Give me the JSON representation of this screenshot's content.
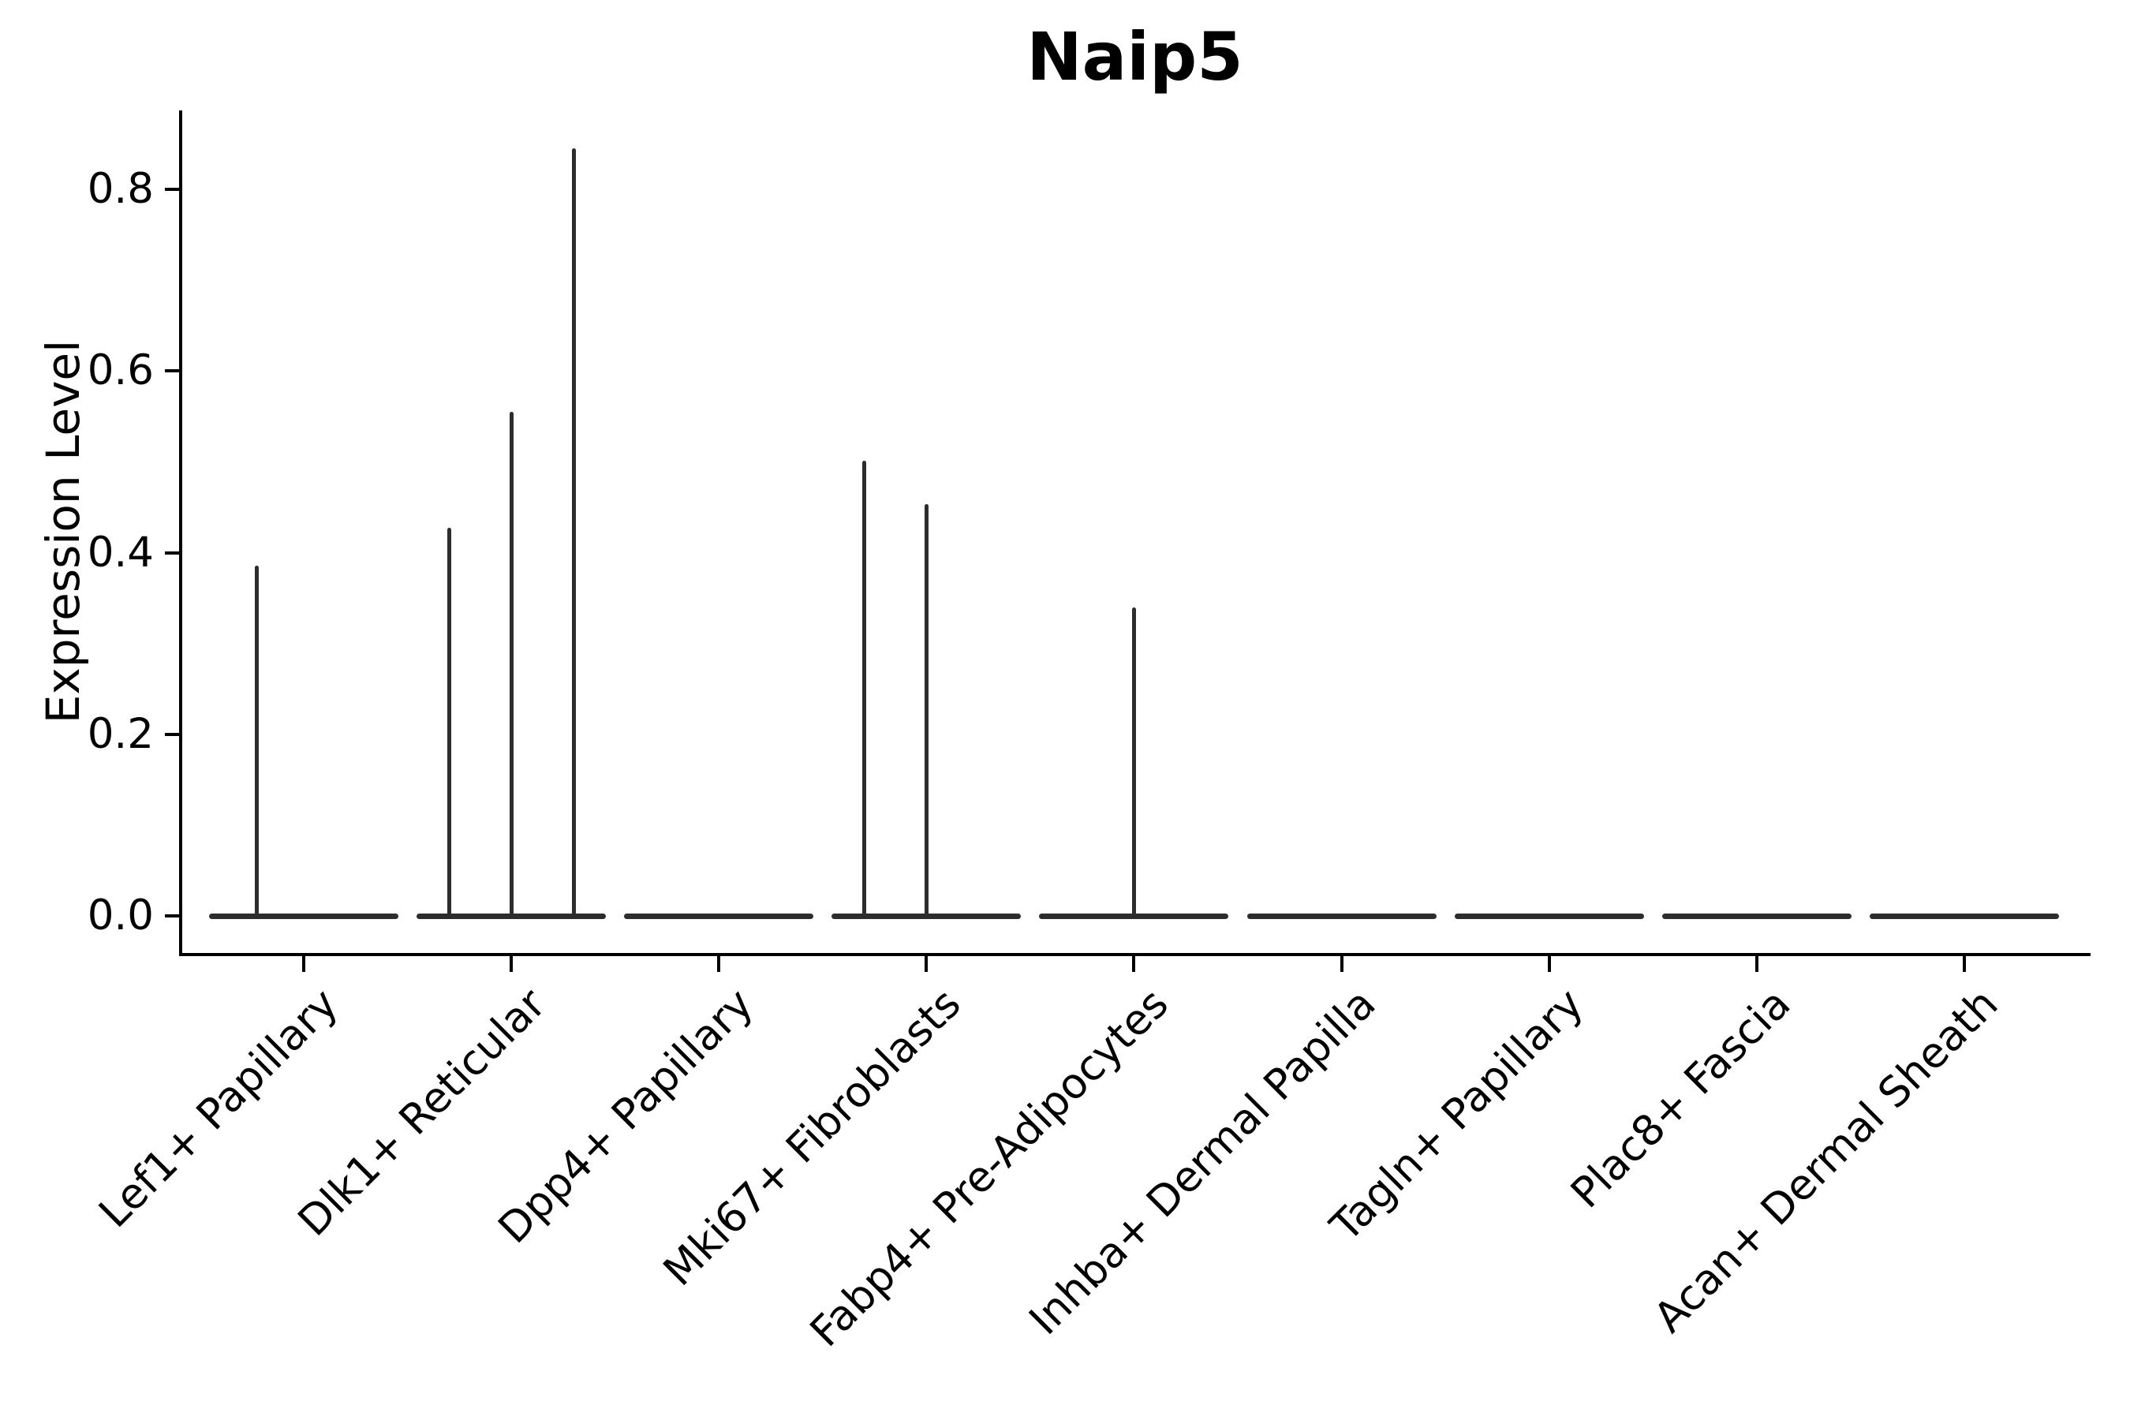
{
  "chart_data": {
    "type": "violin",
    "title": "Naip5",
    "xlabel": "",
    "ylabel": "Expression Level",
    "ylim": [
      0,
      0.887
    ],
    "yticks": [
      0,
      0.2,
      0.4,
      0.6,
      0.8
    ],
    "ytick_labels": [
      "0.0",
      "0.2",
      "0.4",
      "0.6",
      "0.8"
    ],
    "grid": false,
    "legend": "none",
    "line_color": "#2d2d2d",
    "categories": [
      "Lef1+ Papillary",
      "Dlk1+ Reticular",
      "Dpp4+ Papillary",
      "Mki67+ Fibroblasts",
      "Fabp4+ Pre-Adipocytes",
      "Inhba+ Dermal Papilla",
      "Tagln+ Papillary",
      "Plac8+ Fascia",
      "Acan+ Dermal Sheath"
    ],
    "violins": [
      {
        "category": "Lef1+ Papillary",
        "base_value": 0,
        "spikes": [
          {
            "offset": -0.225,
            "max": 0.386
          }
        ]
      },
      {
        "category": "Dlk1+ Reticular",
        "base_value": 0,
        "spikes": [
          {
            "offset": -0.3,
            "max": 0.427
          },
          {
            "offset": 0,
            "max": 0.555
          },
          {
            "offset": 0.3,
            "max": 0.845
          }
        ]
      },
      {
        "category": "Dpp4+ Papillary",
        "base_value": 0,
        "spikes": []
      },
      {
        "category": "Mki67+ Fibroblasts",
        "base_value": 0,
        "spikes": [
          {
            "offset": -0.3,
            "max": 0.501
          },
          {
            "offset": 0,
            "max": 0.453
          }
        ]
      },
      {
        "category": "Fabp4+ Pre-Adipocytes",
        "base_value": 0,
        "spikes": [
          {
            "offset": 0,
            "max": 0.34
          }
        ]
      },
      {
        "category": "Inhba+ Dermal Papilla",
        "base_value": 0,
        "spikes": []
      },
      {
        "category": "Tagln+ Papillary",
        "base_value": 0,
        "spikes": []
      },
      {
        "category": "Plac8+ Fascia",
        "base_value": 0,
        "spikes": []
      },
      {
        "category": "Acan+ Dermal Sheath",
        "base_value": 0,
        "spikes": []
      }
    ]
  }
}
